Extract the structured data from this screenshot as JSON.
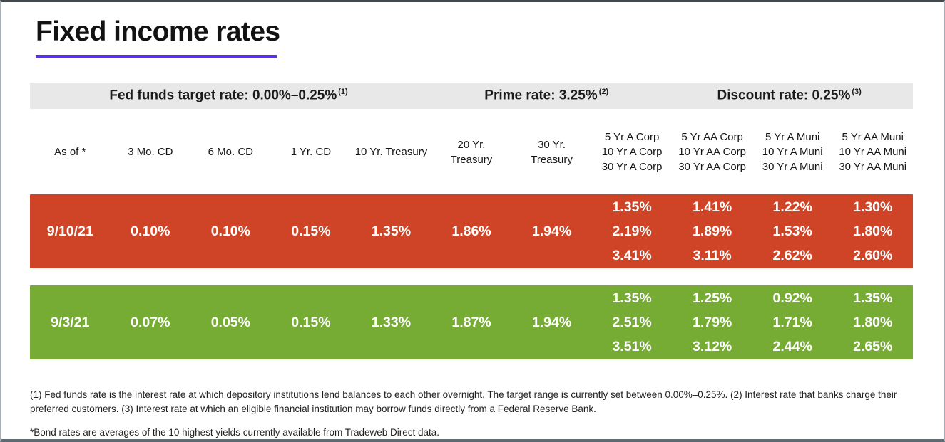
{
  "title": "Fixed income rates",
  "accent_color": "#5833e0",
  "rates_bar": {
    "items": [
      {
        "label": "Fed funds target rate: 0.00%–0.25%",
        "sup": "(1)"
      },
      {
        "label": "Prime rate: 3.25%",
        "sup": "(2)"
      },
      {
        "label": "Discount rate: 0.25%",
        "sup": "(3)"
      }
    ]
  },
  "table": {
    "headers": [
      {
        "lines": [
          "As of *"
        ]
      },
      {
        "lines": [
          "3 Mo. CD"
        ]
      },
      {
        "lines": [
          "6 Mo. CD"
        ]
      },
      {
        "lines": [
          "1 Yr. CD"
        ]
      },
      {
        "lines": [
          "10 Yr. Treasury"
        ]
      },
      {
        "lines": [
          "20 Yr.",
          "Treasury"
        ]
      },
      {
        "lines": [
          "30 Yr.",
          "Treasury"
        ]
      },
      {
        "lines": [
          "5 Yr A Corp",
          "10 Yr A Corp",
          "30 Yr A Corp"
        ]
      },
      {
        "lines": [
          "5 Yr AA Corp",
          "10 Yr AA Corp",
          "30 Yr AA Corp"
        ]
      },
      {
        "lines": [
          "5 Yr A Muni",
          "10 Yr A Muni",
          "30 Yr A Muni"
        ]
      },
      {
        "lines": [
          "5 Yr AA Muni",
          "10 Yr AA Muni",
          "30 Yr AA Muni"
        ]
      }
    ],
    "rows": [
      {
        "date": "9/10/21",
        "color": "#cf4426",
        "cells": [
          {
            "lines": [
              "9/10/21"
            ]
          },
          {
            "lines": [
              "0.10%"
            ]
          },
          {
            "lines": [
              "0.10%"
            ]
          },
          {
            "lines": [
              "0.15%"
            ]
          },
          {
            "lines": [
              "1.35%"
            ]
          },
          {
            "lines": [
              "1.86%"
            ]
          },
          {
            "lines": [
              "1.94%"
            ]
          },
          {
            "lines": [
              "1.35%",
              "2.19%",
              "3.41%"
            ]
          },
          {
            "lines": [
              "1.41%",
              "1.89%",
              "3.11%"
            ]
          },
          {
            "lines": [
              "1.22%",
              "1.53%",
              "2.62%"
            ]
          },
          {
            "lines": [
              "1.30%",
              "1.80%",
              "2.60%"
            ]
          }
        ]
      },
      {
        "date": "9/3/21",
        "color": "#76ac34",
        "cells": [
          {
            "lines": [
              "9/3/21"
            ]
          },
          {
            "lines": [
              "0.07%"
            ]
          },
          {
            "lines": [
              "0.05%"
            ]
          },
          {
            "lines": [
              "0.15%"
            ]
          },
          {
            "lines": [
              "1.33%"
            ]
          },
          {
            "lines": [
              "1.87%"
            ]
          },
          {
            "lines": [
              "1.94%"
            ]
          },
          {
            "lines": [
              "1.35%",
              "2.51%",
              "3.51%"
            ]
          },
          {
            "lines": [
              "1.25%",
              "1.79%",
              "3.12%"
            ]
          },
          {
            "lines": [
              "0.92%",
              "1.71%",
              "2.44%"
            ]
          },
          {
            "lines": [
              "1.35%",
              "1.80%",
              "2.65%"
            ]
          }
        ]
      }
    ]
  },
  "footnotes": [
    "(1) Fed funds rate is the interest rate at which depository institutions lend balances to each other overnight. The target range is currently set between 0.00%–0.25%. (2) Interest rate that banks charge their preferred customers. (3) Interest rate at which an eligible financial institution may borrow funds directly from a Federal Reserve Bank.",
    "*Bond rates are averages of the 10 highest yields currently available from Tradeweb Direct data."
  ]
}
